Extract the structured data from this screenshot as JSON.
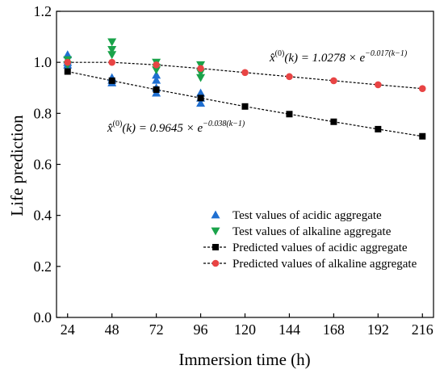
{
  "chart_data": {
    "type": "scatter",
    "xlabel": "Immersion time (h)",
    "ylabel": "Life prediction",
    "xticks": [
      24,
      48,
      72,
      96,
      120,
      144,
      168,
      192,
      216
    ],
    "yticks": [
      0.0,
      0.2,
      0.4,
      0.6,
      0.8,
      1.0,
      1.2
    ],
    "xlim": [
      18,
      222
    ],
    "ylim": [
      0,
      1.2
    ],
    "grid": false,
    "legend_position": "lower-right",
    "series": [
      {
        "name": "Test values of acidic aggregate",
        "marker": "triangle-up",
        "color": "#1f6fd1",
        "line": false,
        "x": [
          24,
          24,
          24,
          24,
          48,
          48,
          48,
          72,
          72,
          72,
          72,
          96,
          96,
          96
        ],
        "y": [
          1.03,
          1.01,
          1.0,
          0.99,
          0.94,
          0.93,
          0.92,
          0.95,
          0.93,
          0.9,
          0.88,
          0.88,
          0.86,
          0.84
        ]
      },
      {
        "name": "Test values of alkaline aggregate",
        "marker": "triangle-down",
        "color": "#1aa34a",
        "line": false,
        "x": [
          24,
          24,
          48,
          48,
          48,
          72,
          72,
          72,
          96,
          96,
          96
        ],
        "y": [
          1.01,
          0.99,
          1.08,
          1.05,
          1.03,
          1.0,
          0.98,
          0.97,
          0.99,
          0.96,
          0.94
        ]
      },
      {
        "name": "Predicted values of acidic aggregate",
        "marker": "square",
        "color": "#000000",
        "line": true,
        "x": [
          24,
          48,
          72,
          96,
          120,
          144,
          168,
          192,
          216
        ],
        "y": [
          0.964,
          0.928,
          0.893,
          0.86,
          0.827,
          0.797,
          0.767,
          0.738,
          0.71
        ]
      },
      {
        "name": "Predicted values of alkaline aggregate",
        "marker": "circle",
        "color": "#e84444",
        "line": true,
        "x": [
          24,
          48,
          72,
          96,
          120,
          144,
          168,
          192,
          216
        ],
        "y": [
          1.0,
          1.0,
          0.99,
          0.976,
          0.96,
          0.944,
          0.928,
          0.912,
          0.897
        ]
      }
    ],
    "annotations": [
      {
        "text": "x̂(0)(k) = 1.0278 × e−0.017(k−1)",
        "near_series": "Predicted values of alkaline aggregate"
      },
      {
        "text": "x̂(0)(k) = 0.9645 × e−0.038(k−1)",
        "near_series": "Predicted values of acidic aggregate"
      }
    ]
  },
  "labels": {
    "eq_alk": {
      "lhs": "x̂",
      "sup0": "(0)",
      "arg": "(k) = 1.0278 × e",
      "exp": "−0.017(k−1)"
    },
    "eq_acid": {
      "lhs": "x̂",
      "sup0": "(0)",
      "arg": "(k) = 0.9645 × e",
      "exp": "−0.038(k−1)"
    }
  }
}
